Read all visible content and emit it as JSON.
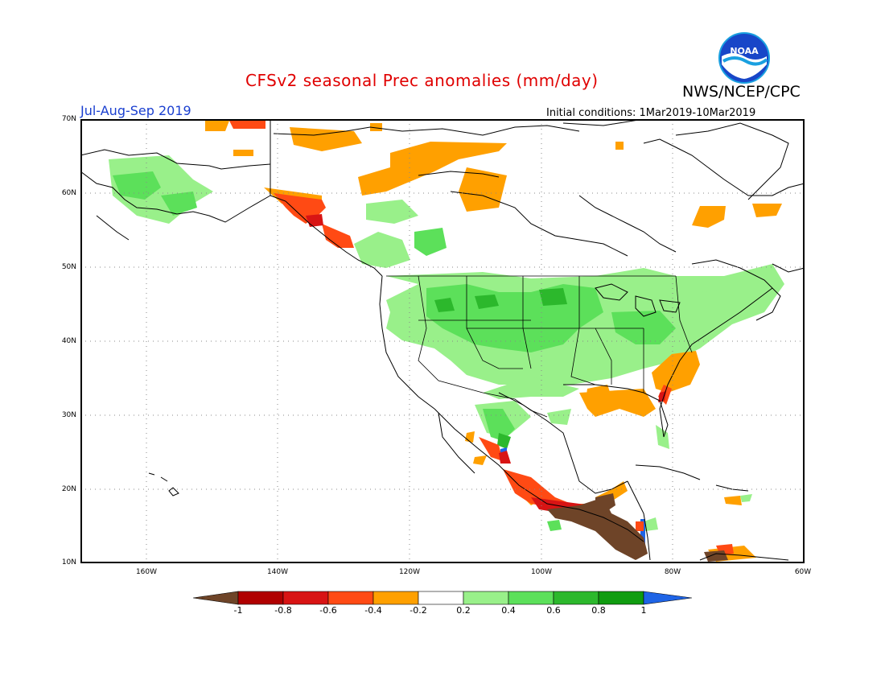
{
  "header": {
    "title": "CFSv2 seasonal Prec anomalies (mm/day)",
    "period": "Jul-Aug-Sep 2019",
    "initial_conditions": "Initial conditions: 1Mar2019-10Mar2019",
    "agency": "NWS/NCEP/CPC",
    "logo_text": "NOAA"
  },
  "map": {
    "lat_labels": [
      "70N",
      "60N",
      "50N",
      "40N",
      "30N",
      "20N",
      "10N"
    ],
    "lon_labels": [
      "160W",
      "140W",
      "120W",
      "100W",
      "80W",
      "60W"
    ],
    "grid": "dotted"
  },
  "colorbar": {
    "labels": [
      "-1",
      "-0.8",
      "-0.6",
      "-0.4",
      "-0.2",
      "0.2",
      "0.4",
      "0.6",
      "0.8",
      "1"
    ],
    "colors": {
      "below_-1": "#6e4428",
      "-1_-0.8": "#b00000",
      "-0.8_-0.6": "#d81414",
      "-0.6_-0.4": "#ff4a14",
      "-0.4_-0.2": "#ffa000",
      "-0.2_0.2": "#ffffff",
      "0.2_0.4": "#99f08a",
      "0.4_0.6": "#5ce05a",
      "0.6_0.8": "#2cb82c",
      "0.8_1": "#109c10",
      "above_1": "#1e64e6"
    }
  }
}
